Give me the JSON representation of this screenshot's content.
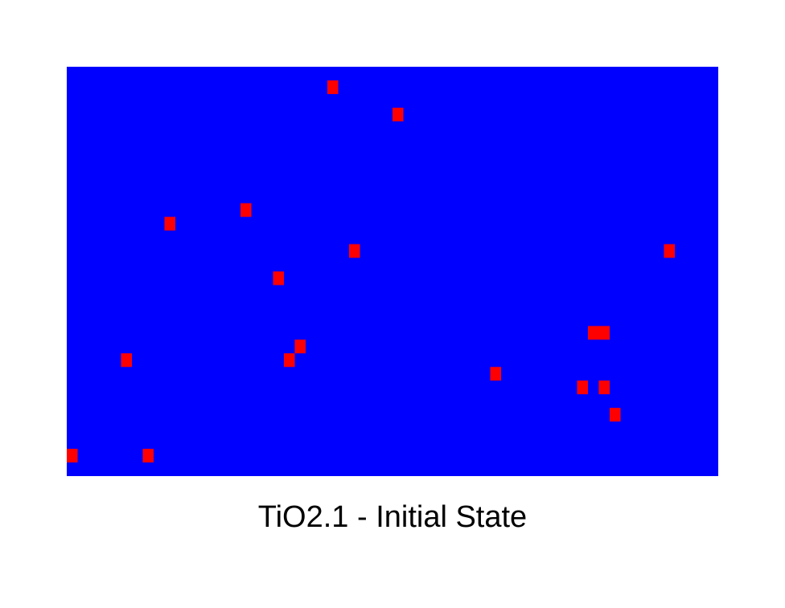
{
  "chart_data": {
    "type": "heatmap",
    "title": "TiO2.1 - Initial State",
    "grid": {
      "cols": 60,
      "rows": 30
    },
    "colors": {
      "background": "#0000ff",
      "site": "#ff0000"
    },
    "grid_lines": false,
    "legend": "none",
    "cells": [
      {
        "col": 24,
        "row": 1
      },
      {
        "col": 30,
        "row": 3
      },
      {
        "col": 16,
        "row": 10
      },
      {
        "col": 9,
        "row": 11
      },
      {
        "col": 26,
        "row": 13
      },
      {
        "col": 55,
        "row": 13
      },
      {
        "col": 19,
        "row": 15
      },
      {
        "col": 48,
        "row": 19
      },
      {
        "col": 49,
        "row": 19
      },
      {
        "col": 21,
        "row": 20
      },
      {
        "col": 5,
        "row": 21
      },
      {
        "col": 20,
        "row": 21
      },
      {
        "col": 39,
        "row": 22
      },
      {
        "col": 47,
        "row": 23
      },
      {
        "col": 49,
        "row": 23
      },
      {
        "col": 50,
        "row": 25
      },
      {
        "col": 0,
        "row": 28
      },
      {
        "col": 7,
        "row": 28
      }
    ]
  }
}
